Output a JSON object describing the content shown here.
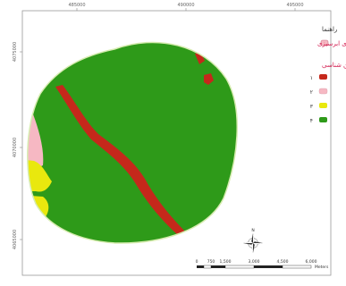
{
  "colors": {
    "study_area": "#2e9a19",
    "boundary": "#d7ecb1",
    "zone_1": "#c5281b",
    "zone_2": "#f6b8c3",
    "zone_3": "#e9e80e",
    "zone_4": "#2e9a19",
    "boundary_swatch": "#f6b8c3"
  },
  "top_ticks": [
    "485000",
    "490000",
    "495000"
  ],
  "left_ticks": [
    "4075000",
    "4070000",
    "4065000"
  ],
  "legend": {
    "title": "راهنما",
    "boundary_label": "محدوده ی فلات ایرنای ابرسیزی",
    "subtitle": "ارزش واحدهای زمین شناسی",
    "items": [
      {
        "label": "۱",
        "color_key": "zone_1"
      },
      {
        "label": "۲",
        "color_key": "zone_2"
      },
      {
        "label": "۳",
        "color_key": "zone_3"
      },
      {
        "label": "۴",
        "color_key": "zone_4"
      }
    ]
  },
  "north_arrow": {
    "label": "N"
  },
  "scale_bar": {
    "labels": [
      "0",
      "750",
      "1,500",
      "3,000",
      "4,500",
      "6,000"
    ],
    "unit": "Meters"
  }
}
